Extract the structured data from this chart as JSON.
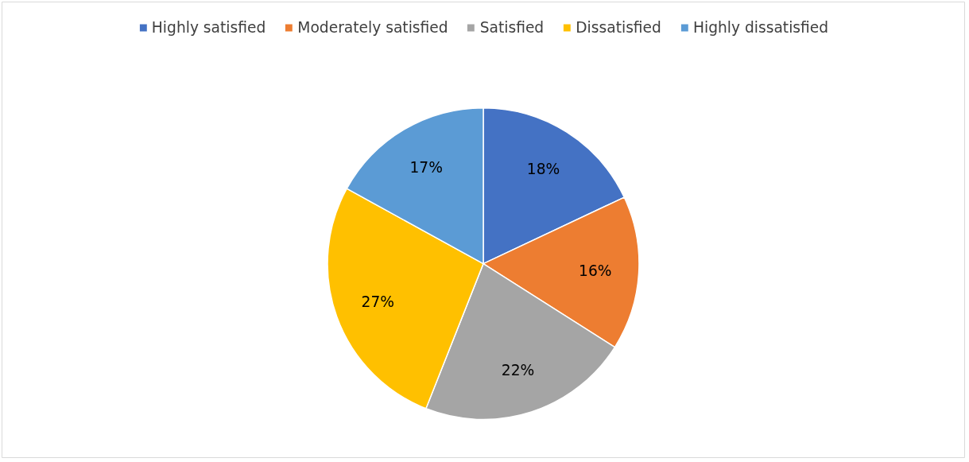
{
  "chart_data": {
    "type": "pie",
    "categories": [
      "Highly satisfied",
      "Moderately satisfied",
      "Satisfied",
      "Dissatisfied",
      "Highly dissatisfied"
    ],
    "values": [
      18,
      16,
      22,
      27,
      17
    ],
    "colors": [
      "#4472c4",
      "#ed7d31",
      "#a5a5a5",
      "#ffc000",
      "#5b9bd5"
    ],
    "value_labels": [
      "18%",
      "16%",
      "22%",
      "27%",
      "17%"
    ],
    "legend": "top"
  }
}
